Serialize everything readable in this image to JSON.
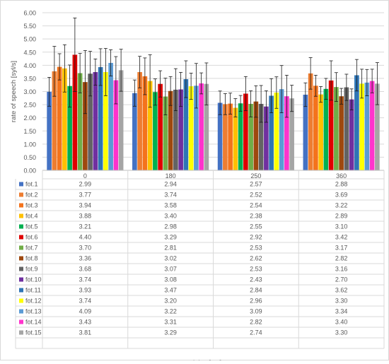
{
  "chart_data": {
    "type": "bar",
    "title": "",
    "ylabel": "rate of speech [syl/s]",
    "xlabel": "delay [ms]",
    "ylim": [
      0,
      6
    ],
    "ytick_step": 0.5,
    "ytick_labels": [
      "0.00",
      "0.50",
      "1.00",
      "1.50",
      "2.00",
      "2.50",
      "3.00",
      "3.50",
      "4.00",
      "4.50",
      "5.00",
      "5.50",
      "6.00"
    ],
    "grid": true,
    "legend_placement": "data-table",
    "categories": [
      "0",
      "180",
      "250",
      "360"
    ],
    "series": [
      {
        "name": "fot.1",
        "color": "#4472c4",
        "values": [
          2.99,
          2.94,
          2.57,
          2.88
        ],
        "labels": [
          "2.99",
          "2.94",
          "2.57",
          "2.88"
        ],
        "err": [
          0.55,
          0.5,
          0.45,
          0.45
        ]
      },
      {
        "name": "fot.2",
        "color": "#ed7d31",
        "values": [
          3.77,
          3.74,
          2.52,
          3.69
        ],
        "labels": [
          "3.77",
          "3.74",
          "2.52",
          "3.69"
        ],
        "err": [
          0.95,
          0.6,
          0.4,
          0.6
        ]
      },
      {
        "name": "fot.3",
        "color": "#f4731c",
        "values": [
          3.94,
          3.58,
          2.54,
          3.22
        ],
        "labels": [
          "3.94",
          "3.58",
          "2.54",
          "3.22"
        ],
        "err": [
          0.5,
          0.7,
          0.4,
          0.4
        ]
      },
      {
        "name": "fot.4",
        "color": "#ffc000",
        "values": [
          3.88,
          3.4,
          2.38,
          2.89
        ],
        "labels": [
          "3.88",
          "3.40",
          "2.38",
          "2.89"
        ],
        "err": [
          0.9,
          1.0,
          0.35,
          0.3
        ]
      },
      {
        "name": "fot.5",
        "color": "#00b050",
        "values": [
          3.21,
          2.98,
          2.55,
          3.1
        ],
        "labels": [
          "3.21",
          "2.98",
          "2.55",
          "3.10"
        ],
        "err": [
          0.8,
          0.5,
          0.3,
          0.4
        ]
      },
      {
        "name": "fot.6",
        "color": "#e00000",
        "values": [
          4.4,
          3.29,
          2.92,
          3.42
        ],
        "labels": [
          "4.40",
          "3.29",
          "2.92",
          "3.42"
        ],
        "err": [
          1.4,
          0.5,
          0.65,
          0.75
        ]
      },
      {
        "name": "fot.7",
        "color": "#70ad47",
        "values": [
          3.7,
          2.81,
          2.53,
          3.17
        ],
        "labels": [
          "3.70",
          "2.81",
          "2.53",
          "3.17"
        ],
        "err": [
          0.75,
          0.7,
          0.5,
          0.55
        ]
      },
      {
        "name": "fot.8",
        "color": "#9e480e",
        "values": [
          3.36,
          3.02,
          2.62,
          2.82
        ],
        "labels": [
          "3.36",
          "3.02",
          "2.62",
          "2.82"
        ],
        "err": [
          1.2,
          0.55,
          0.6,
          0.3
        ]
      },
      {
        "name": "fot.9",
        "color": "#636363",
        "values": [
          3.68,
          3.07,
          2.53,
          3.16
        ],
        "labels": [
          "3.68",
          "3.07",
          "2.53",
          "3.16"
        ],
        "err": [
          0.85,
          0.8,
          0.7,
          0.5
        ]
      },
      {
        "name": "fot.10",
        "color": "#7030a0",
        "values": [
          3.74,
          3.08,
          2.43,
          2.7
        ],
        "labels": [
          "3.74",
          "3.08",
          "2.43",
          "2.70"
        ],
        "err": [
          0.5,
          0.65,
          0.6,
          0.4
        ]
      },
      {
        "name": "fot.11",
        "color": "#2f75b5",
        "values": [
          3.93,
          3.47,
          2.84,
          3.62
        ],
        "labels": [
          "3.93",
          "3.47",
          "2.84",
          "3.62"
        ],
        "err": [
          0.7,
          0.7,
          0.65,
          0.6
        ]
      },
      {
        "name": "fot.12",
        "color": "#ffff00",
        "values": [
          3.74,
          3.2,
          2.96,
          3.3
        ],
        "labels": [
          "3.74",
          "3.20",
          "2.96",
          "3.30"
        ],
        "err": [
          0.9,
          0.5,
          0.6,
          0.55
        ]
      },
      {
        "name": "fot.13",
        "color": "#5b9bd5",
        "values": [
          4.09,
          3.22,
          3.09,
          3.34
        ],
        "labels": [
          "4.09",
          "3.22",
          "3.09",
          "3.34"
        ],
        "err": [
          0.5,
          0.85,
          0.9,
          0.5
        ]
      },
      {
        "name": "fot.14",
        "color": "#ff33cc",
        "values": [
          3.43,
          3.31,
          2.82,
          3.4
        ],
        "labels": [
          "3.43",
          "3.31",
          "2.82",
          "3.40"
        ],
        "err": [
          0.9,
          0.4,
          0.8,
          0.45
        ]
      },
      {
        "name": "fot.15",
        "color": "#a5a5a5",
        "values": [
          3.81,
          3.29,
          2.74,
          3.3
        ],
        "labels": [
          "3.81",
          "3.29",
          "2.74",
          "3.30"
        ],
        "err": [
          0.8,
          0.8,
          0.5,
          0.8
        ]
      }
    ]
  }
}
